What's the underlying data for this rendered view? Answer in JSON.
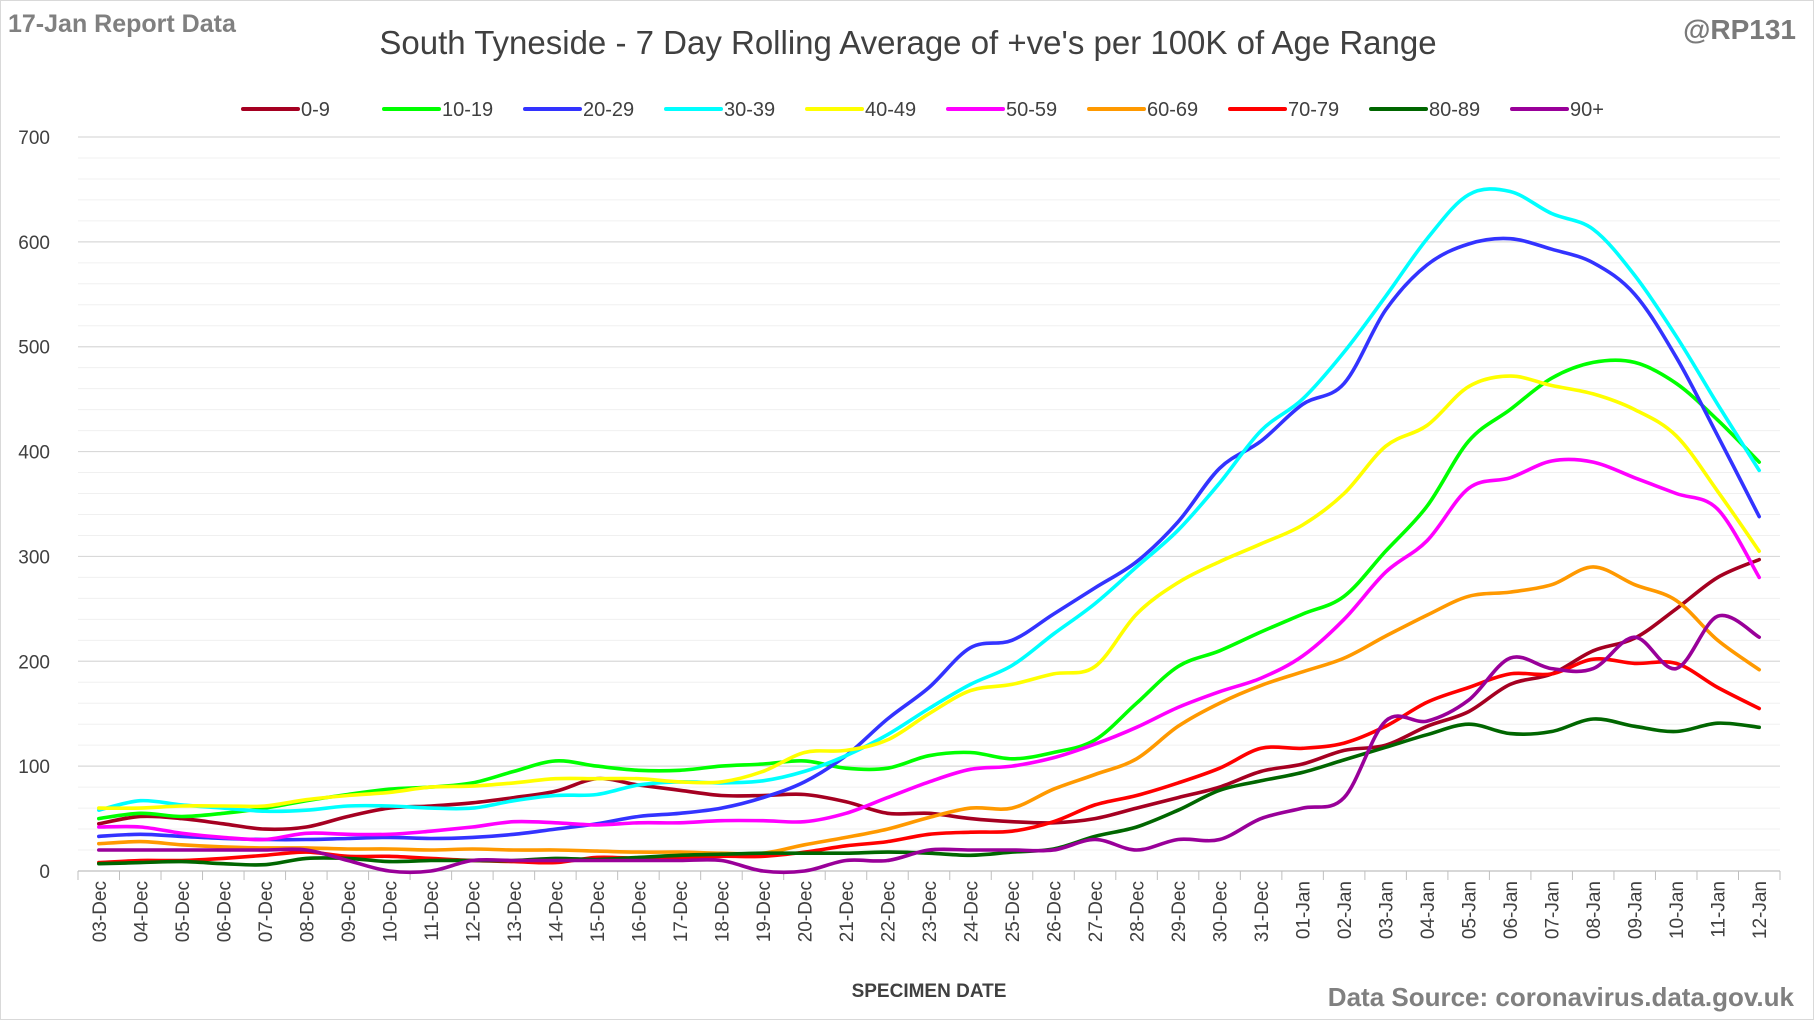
{
  "header": {
    "report_date": "17-Jan Report Data",
    "handle": "@RP131",
    "source": "Data Source: coronavirus.data.gov.uk"
  },
  "chart_data": {
    "type": "line",
    "title": "South Tyneside - 7 Day Rolling Average of +ve's per 100K of Age Range",
    "xlabel": "SPECIMEN DATE",
    "ylabel": "",
    "ylim": [
      0,
      700
    ],
    "yticks": [
      0,
      100,
      200,
      300,
      400,
      500,
      600,
      700
    ],
    "grid": true,
    "legend": "top",
    "categories": [
      "03-Dec",
      "04-Dec",
      "05-Dec",
      "06-Dec",
      "07-Dec",
      "08-Dec",
      "09-Dec",
      "10-Dec",
      "11-Dec",
      "12-Dec",
      "13-Dec",
      "14-Dec",
      "15-Dec",
      "16-Dec",
      "17-Dec",
      "18-Dec",
      "19-Dec",
      "20-Dec",
      "21-Dec",
      "22-Dec",
      "23-Dec",
      "24-Dec",
      "25-Dec",
      "26-Dec",
      "27-Dec",
      "28-Dec",
      "29-Dec",
      "30-Dec",
      "31-Dec",
      "01-Jan",
      "02-Jan",
      "03-Jan",
      "04-Jan",
      "05-Jan",
      "06-Jan",
      "07-Jan",
      "08-Jan",
      "09-Jan",
      "10-Jan",
      "11-Jan",
      "12-Jan"
    ],
    "series": [
      {
        "name": "0-9",
        "color": "#a50021",
        "values": [
          45,
          52,
          50,
          45,
          40,
          42,
          52,
          60,
          62,
          65,
          70,
          76,
          88,
          82,
          77,
          72,
          72,
          73,
          66,
          55,
          55,
          50,
          47,
          46,
          50,
          60,
          70,
          80,
          95,
          102,
          115,
          120,
          138,
          152,
          178,
          188,
          210,
          222,
          250,
          280,
          297
        ]
      },
      {
        "name": "10-19",
        "color": "#00ff00",
        "values": [
          50,
          55,
          52,
          55,
          60,
          67,
          73,
          78,
          80,
          84,
          95,
          105,
          100,
          96,
          96,
          100,
          102,
          105,
          98,
          98,
          110,
          113,
          107,
          113,
          125,
          160,
          195,
          210,
          228,
          245,
          262,
          305,
          348,
          410,
          440,
          470,
          485,
          485,
          465,
          430,
          390
        ]
      },
      {
        "name": "20-29",
        "color": "#3333ff",
        "values": [
          33,
          35,
          33,
          31,
          30,
          30,
          31,
          32,
          31,
          32,
          35,
          40,
          45,
          52,
          55,
          60,
          70,
          85,
          110,
          145,
          175,
          213,
          220,
          245,
          270,
          295,
          333,
          384,
          410,
          445,
          465,
          535,
          578,
          598,
          603,
          593,
          580,
          550,
          490,
          415,
          338
        ]
      },
      {
        "name": "30-39",
        "color": "#00ffff",
        "values": [
          58,
          67,
          63,
          60,
          57,
          58,
          62,
          62,
          60,
          60,
          67,
          72,
          73,
          82,
          85,
          84,
          86,
          95,
          110,
          130,
          155,
          178,
          196,
          226,
          255,
          290,
          325,
          370,
          420,
          450,
          495,
          548,
          603,
          645,
          648,
          627,
          612,
          568,
          510,
          445,
          382
        ]
      },
      {
        "name": "40-49",
        "color": "#ffff00",
        "values": [
          60,
          60,
          62,
          62,
          62,
          68,
          72,
          75,
          80,
          81,
          84,
          88,
          88,
          88,
          85,
          85,
          95,
          113,
          115,
          125,
          150,
          172,
          178,
          188,
          195,
          245,
          275,
          295,
          312,
          330,
          360,
          405,
          425,
          462,
          472,
          463,
          455,
          440,
          415,
          362,
          305
        ]
      },
      {
        "name": "50-59",
        "color": "#ff00ff",
        "values": [
          42,
          42,
          36,
          32,
          30,
          36,
          35,
          35,
          38,
          42,
          47,
          46,
          44,
          46,
          46,
          48,
          48,
          47,
          55,
          70,
          85,
          97,
          100,
          108,
          121,
          137,
          156,
          171,
          184,
          205,
          240,
          285,
          315,
          365,
          375,
          391,
          390,
          375,
          360,
          345,
          280
        ]
      },
      {
        "name": "60-69",
        "color": "#ff9900",
        "values": [
          26,
          28,
          25,
          23,
          22,
          22,
          21,
          21,
          20,
          21,
          20,
          20,
          19,
          18,
          18,
          17,
          17,
          25,
          32,
          40,
          51,
          60,
          60,
          78,
          92,
          107,
          138,
          160,
          177,
          190,
          203,
          224,
          244,
          262,
          266,
          273,
          290,
          273,
          258,
          220,
          192
        ]
      },
      {
        "name": "70-79",
        "color": "#ff0000",
        "values": [
          8,
          10,
          10,
          12,
          15,
          18,
          14,
          14,
          12,
          10,
          9,
          8,
          13,
          12,
          12,
          14,
          14,
          18,
          24,
          28,
          35,
          37,
          38,
          47,
          63,
          72,
          84,
          98,
          117,
          117,
          122,
          138,
          161,
          175,
          188,
          188,
          202,
          198,
          198,
          175,
          155
        ]
      },
      {
        "name": "80-89",
        "color": "#006600",
        "values": [
          7,
          8,
          9,
          7,
          6,
          12,
          12,
          9,
          10,
          10,
          10,
          12,
          11,
          13,
          15,
          16,
          17,
          17,
          17,
          18,
          17,
          15,
          18,
          21,
          33,
          42,
          58,
          77,
          86,
          94,
          106,
          118,
          130,
          140,
          131,
          133,
          145,
          138,
          133,
          141,
          137
        ]
      },
      {
        "name": "90+",
        "color": "#990099",
        "values": [
          20,
          20,
          20,
          20,
          20,
          20,
          10,
          0,
          0,
          10,
          10,
          10,
          10,
          10,
          10,
          10,
          0,
          0,
          10,
          10,
          20,
          20,
          20,
          20,
          30,
          20,
          30,
          30,
          50,
          60,
          70,
          143,
          143,
          163,
          203,
          193,
          193,
          223,
          193,
          243,
          223
        ]
      }
    ]
  }
}
